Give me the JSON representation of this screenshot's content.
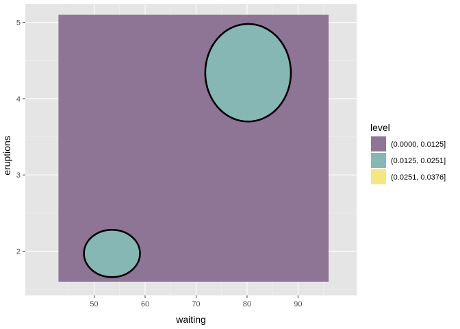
{
  "chart_data": {
    "type": "filled-density-contour",
    "xlabel": "waiting",
    "ylabel": "eruptions",
    "xlim": [
      36.5,
      101.5
    ],
    "ylim": [
      1.42,
      5.24
    ],
    "x_ticks": [
      50,
      60,
      70,
      80,
      90
    ],
    "y_ticks": [
      2,
      3,
      4,
      5
    ],
    "grid": true,
    "colors": {
      "panel_background": "#e5e5e5",
      "grid_major": "#ffffff",
      "grid_minor": "#f0f0f0"
    },
    "legend": {
      "title": "level",
      "position": "right",
      "entries": [
        {
          "label": "(0.0000, 0.0125]",
          "color": "#8f7595"
        },
        {
          "label": "(0.0125, 0.0251]",
          "color": "#86b7b5"
        },
        {
          "label": "(0.0251, 0.0376]",
          "color": "#f5e684"
        }
      ]
    },
    "regions": [
      {
        "level": "(0.0000, 0.0125]",
        "shape": "rect",
        "color": "#8f7595",
        "x_range": [
          43,
          96
        ],
        "y_range": [
          1.6,
          5.1
        ]
      },
      {
        "level": "(0.0125, 0.0251]",
        "shape": "ellipse",
        "color": "#86b7b5",
        "center": [
          80.2,
          4.34
        ],
        "half_width": 8.4,
        "half_height": 0.64
      },
      {
        "level": "(0.0125, 0.0251]",
        "shape": "ellipse",
        "color": "#86b7b5",
        "center": [
          53.5,
          1.97
        ],
        "half_width": 5.5,
        "half_height": 0.31
      }
    ]
  }
}
